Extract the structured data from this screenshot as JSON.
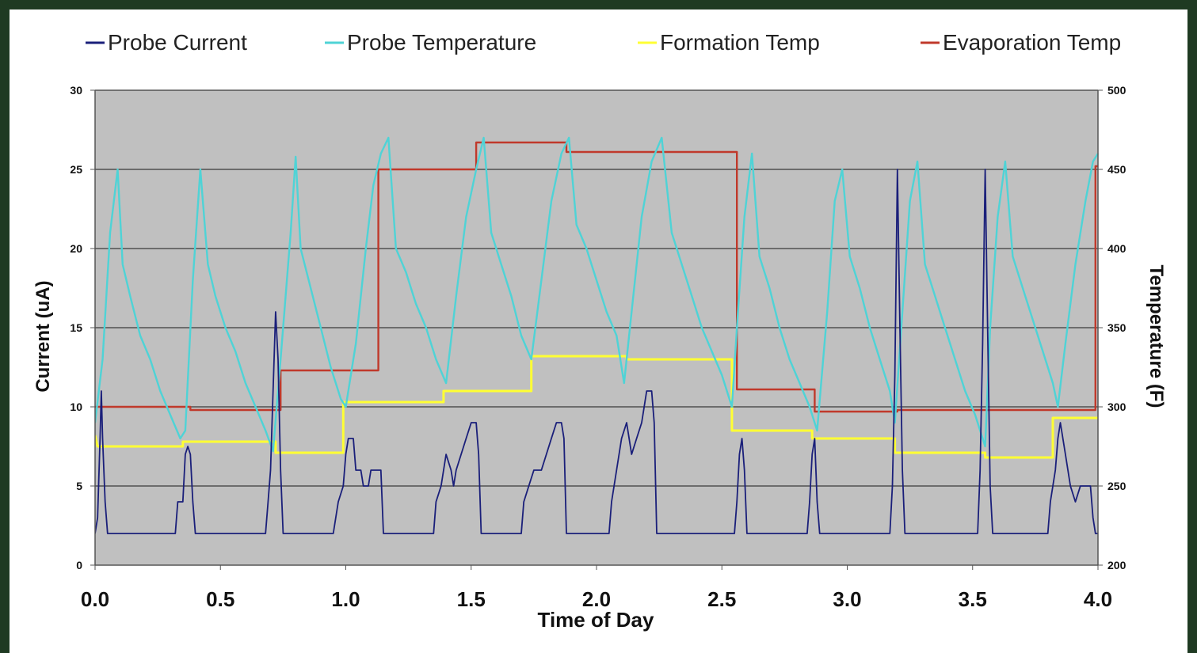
{
  "chart_data": {
    "type": "line",
    "title": "",
    "xlabel": "Time of Day",
    "ylabel": "Current (uA)",
    "y2label": "Temperature (F)",
    "xlim": [
      0,
      4
    ],
    "ylim": [
      0,
      30
    ],
    "y2lim": [
      200,
      500
    ],
    "x_ticks": [
      0,
      0.5,
      1,
      1.5,
      2,
      2.5,
      3,
      3.5,
      4
    ],
    "x_tick_labels": [
      "0.0",
      "0.5",
      "1.0",
      "1.5",
      "2.0",
      "2.5",
      "3.0",
      "3.5",
      "4.0"
    ],
    "y_ticks": [
      0,
      5,
      10,
      15,
      20,
      25,
      30
    ],
    "y_tick_labels": [
      "0",
      "5",
      "10",
      "15",
      "20",
      "25",
      "30"
    ],
    "y2_ticks": [
      200,
      250,
      300,
      350,
      400,
      450,
      500
    ],
    "y2_tick_labels": [
      "200",
      "250",
      "300",
      "350",
      "400",
      "450",
      "500"
    ],
    "grid": true,
    "plot_background": "#c0c0c0",
    "legend_position": "top",
    "series": [
      {
        "name": "Probe Current",
        "axis": "left",
        "color": "#1a1f7a",
        "points": [
          [
            0.0,
            2
          ],
          [
            0.01,
            3
          ],
          [
            0.02,
            8
          ],
          [
            0.025,
            11
          ],
          [
            0.03,
            8
          ],
          [
            0.04,
            4
          ],
          [
            0.05,
            2
          ],
          [
            0.32,
            2
          ],
          [
            0.33,
            4
          ],
          [
            0.35,
            4
          ],
          [
            0.36,
            7
          ],
          [
            0.37,
            7.5
          ],
          [
            0.38,
            7
          ],
          [
            0.39,
            4
          ],
          [
            0.4,
            2
          ],
          [
            0.68,
            2
          ],
          [
            0.69,
            4
          ],
          [
            0.7,
            6
          ],
          [
            0.71,
            11
          ],
          [
            0.72,
            16
          ],
          [
            0.73,
            13
          ],
          [
            0.74,
            6
          ],
          [
            0.75,
            2
          ],
          [
            0.95,
            2
          ],
          [
            0.97,
            4
          ],
          [
            0.99,
            5
          ],
          [
            1.0,
            7
          ],
          [
            1.01,
            8
          ],
          [
            1.03,
            8
          ],
          [
            1.04,
            6
          ],
          [
            1.06,
            6
          ],
          [
            1.07,
            5
          ],
          [
            1.09,
            5
          ],
          [
            1.1,
            6
          ],
          [
            1.14,
            6
          ],
          [
            1.15,
            2
          ],
          [
            1.35,
            2
          ],
          [
            1.36,
            4
          ],
          [
            1.38,
            5
          ],
          [
            1.4,
            7
          ],
          [
            1.42,
            6
          ],
          [
            1.43,
            5
          ],
          [
            1.44,
            6
          ],
          [
            1.46,
            7
          ],
          [
            1.48,
            8
          ],
          [
            1.5,
            9
          ],
          [
            1.52,
            9
          ],
          [
            1.53,
            7
          ],
          [
            1.54,
            2
          ],
          [
            1.7,
            2
          ],
          [
            1.71,
            4
          ],
          [
            1.73,
            5
          ],
          [
            1.75,
            6
          ],
          [
            1.78,
            6
          ],
          [
            1.8,
            7
          ],
          [
            1.82,
            8
          ],
          [
            1.84,
            9
          ],
          [
            1.86,
            9
          ],
          [
            1.87,
            8
          ],
          [
            1.88,
            2
          ],
          [
            2.05,
            2
          ],
          [
            2.06,
            4
          ],
          [
            2.08,
            6
          ],
          [
            2.1,
            8
          ],
          [
            2.12,
            9
          ],
          [
            2.14,
            7
          ],
          [
            2.16,
            8
          ],
          [
            2.18,
            9
          ],
          [
            2.2,
            11
          ],
          [
            2.22,
            11
          ],
          [
            2.23,
            9
          ],
          [
            2.24,
            2
          ],
          [
            2.55,
            2
          ],
          [
            2.56,
            4
          ],
          [
            2.57,
            7
          ],
          [
            2.58,
            8
          ],
          [
            2.59,
            6
          ],
          [
            2.6,
            2
          ],
          [
            2.84,
            2
          ],
          [
            2.85,
            4
          ],
          [
            2.86,
            7
          ],
          [
            2.87,
            8
          ],
          [
            2.88,
            4
          ],
          [
            2.89,
            2
          ],
          [
            3.17,
            2
          ],
          [
            3.18,
            5
          ],
          [
            3.19,
            12
          ],
          [
            3.2,
            25
          ],
          [
            3.21,
            15
          ],
          [
            3.22,
            6
          ],
          [
            3.23,
            2
          ],
          [
            3.52,
            2
          ],
          [
            3.53,
            6
          ],
          [
            3.54,
            14
          ],
          [
            3.55,
            25
          ],
          [
            3.56,
            15
          ],
          [
            3.57,
            5
          ],
          [
            3.58,
            2
          ],
          [
            3.8,
            2
          ],
          [
            3.81,
            4
          ],
          [
            3.83,
            6
          ],
          [
            3.84,
            8
          ],
          [
            3.85,
            9
          ],
          [
            3.87,
            7
          ],
          [
            3.89,
            5
          ],
          [
            3.91,
            4
          ],
          [
            3.93,
            5
          ],
          [
            3.97,
            5
          ],
          [
            3.98,
            3
          ],
          [
            3.99,
            2
          ],
          [
            4.0,
            2
          ]
        ]
      },
      {
        "name": "Probe Temperature",
        "axis": "right",
        "color": "#4fd3d6",
        "points": [
          [
            0.0,
            290
          ],
          [
            0.03,
            330
          ],
          [
            0.06,
            410
          ],
          [
            0.09,
            450
          ],
          [
            0.11,
            390
          ],
          [
            0.14,
            370
          ],
          [
            0.18,
            345
          ],
          [
            0.22,
            330
          ],
          [
            0.26,
            310
          ],
          [
            0.3,
            295
          ],
          [
            0.34,
            280
          ],
          [
            0.36,
            285
          ],
          [
            0.39,
            380
          ],
          [
            0.42,
            450
          ],
          [
            0.45,
            390
          ],
          [
            0.48,
            370
          ],
          [
            0.52,
            350
          ],
          [
            0.56,
            335
          ],
          [
            0.6,
            315
          ],
          [
            0.64,
            300
          ],
          [
            0.68,
            285
          ],
          [
            0.71,
            272
          ],
          [
            0.74,
            330
          ],
          [
            0.78,
            410
          ],
          [
            0.8,
            458
          ],
          [
            0.82,
            400
          ],
          [
            0.86,
            375
          ],
          [
            0.9,
            350
          ],
          [
            0.94,
            325
          ],
          [
            0.98,
            305
          ],
          [
            1.0,
            300
          ],
          [
            1.04,
            340
          ],
          [
            1.08,
            400
          ],
          [
            1.11,
            440
          ],
          [
            1.14,
            460
          ],
          [
            1.17,
            470
          ],
          [
            1.2,
            400
          ],
          [
            1.24,
            385
          ],
          [
            1.28,
            365
          ],
          [
            1.32,
            350
          ],
          [
            1.36,
            330
          ],
          [
            1.4,
            315
          ],
          [
            1.44,
            370
          ],
          [
            1.48,
            420
          ],
          [
            1.52,
            450
          ],
          [
            1.55,
            470
          ],
          [
            1.58,
            410
          ],
          [
            1.62,
            390
          ],
          [
            1.66,
            370
          ],
          [
            1.7,
            345
          ],
          [
            1.74,
            330
          ],
          [
            1.78,
            380
          ],
          [
            1.82,
            430
          ],
          [
            1.86,
            460
          ],
          [
            1.89,
            470
          ],
          [
            1.92,
            415
          ],
          [
            1.96,
            400
          ],
          [
            2.0,
            380
          ],
          [
            2.04,
            360
          ],
          [
            2.08,
            345
          ],
          [
            2.11,
            315
          ],
          [
            2.14,
            360
          ],
          [
            2.18,
            420
          ],
          [
            2.22,
            455
          ],
          [
            2.26,
            470
          ],
          [
            2.3,
            410
          ],
          [
            2.34,
            390
          ],
          [
            2.38,
            370
          ],
          [
            2.42,
            350
          ],
          [
            2.46,
            335
          ],
          [
            2.5,
            320
          ],
          [
            2.54,
            300
          ],
          [
            2.56,
            350
          ],
          [
            2.59,
            420
          ],
          [
            2.62,
            460
          ],
          [
            2.65,
            395
          ],
          [
            2.69,
            375
          ],
          [
            2.73,
            350
          ],
          [
            2.77,
            330
          ],
          [
            2.81,
            315
          ],
          [
            2.85,
            300
          ],
          [
            2.88,
            285
          ],
          [
            2.92,
            360
          ],
          [
            2.95,
            430
          ],
          [
            2.98,
            450
          ],
          [
            3.01,
            395
          ],
          [
            3.05,
            375
          ],
          [
            3.09,
            350
          ],
          [
            3.13,
            330
          ],
          [
            3.17,
            310
          ],
          [
            3.19,
            290
          ],
          [
            3.22,
            360
          ],
          [
            3.25,
            430
          ],
          [
            3.28,
            455
          ],
          [
            3.31,
            390
          ],
          [
            3.35,
            370
          ],
          [
            3.39,
            350
          ],
          [
            3.43,
            330
          ],
          [
            3.47,
            310
          ],
          [
            3.51,
            295
          ],
          [
            3.55,
            275
          ],
          [
            3.57,
            350
          ],
          [
            3.6,
            420
          ],
          [
            3.63,
            455
          ],
          [
            3.66,
            395
          ],
          [
            3.7,
            375
          ],
          [
            3.74,
            355
          ],
          [
            3.78,
            335
          ],
          [
            3.82,
            315
          ],
          [
            3.84,
            300
          ],
          [
            3.87,
            340
          ],
          [
            3.91,
            390
          ],
          [
            3.95,
            430
          ],
          [
            3.98,
            455
          ],
          [
            4.0,
            460
          ]
        ]
      },
      {
        "name": "Formation Temp",
        "axis": "right",
        "color": "#ffff33",
        "points": [
          [
            0.0,
            282
          ],
          [
            0.01,
            275
          ],
          [
            0.35,
            275
          ],
          [
            0.35,
            278
          ],
          [
            0.72,
            278
          ],
          [
            0.72,
            271
          ],
          [
            0.99,
            271
          ],
          [
            0.99,
            303
          ],
          [
            1.39,
            303
          ],
          [
            1.39,
            310
          ],
          [
            1.74,
            310
          ],
          [
            1.74,
            332
          ],
          [
            2.12,
            332
          ],
          [
            2.12,
            330
          ],
          [
            2.54,
            330
          ],
          [
            2.54,
            285
          ],
          [
            2.86,
            285
          ],
          [
            2.86,
            280
          ],
          [
            3.19,
            280
          ],
          [
            3.19,
            271
          ],
          [
            3.55,
            271
          ],
          [
            3.55,
            268
          ],
          [
            3.82,
            268
          ],
          [
            3.82,
            293
          ],
          [
            4.0,
            293
          ]
        ]
      },
      {
        "name": "Evaporation Temp",
        "axis": "right",
        "color": "#c0392b",
        "points": [
          [
            0.0,
            300
          ],
          [
            0.38,
            300
          ],
          [
            0.38,
            298
          ],
          [
            0.74,
            298
          ],
          [
            0.74,
            323
          ],
          [
            1.13,
            323
          ],
          [
            1.13,
            450
          ],
          [
            1.52,
            450
          ],
          [
            1.52,
            467
          ],
          [
            1.88,
            467
          ],
          [
            1.88,
            461
          ],
          [
            2.56,
            461
          ],
          [
            2.56,
            311
          ],
          [
            2.87,
            311
          ],
          [
            2.87,
            297
          ],
          [
            3.2,
            297
          ],
          [
            3.2,
            298
          ],
          [
            3.99,
            298
          ],
          [
            3.99,
            452
          ],
          [
            4.0,
            452
          ]
        ]
      }
    ]
  }
}
